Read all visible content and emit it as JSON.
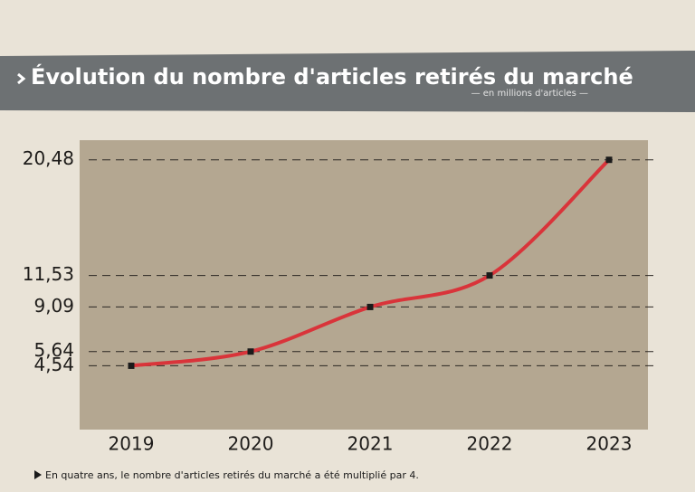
{
  "chart_data": {
    "type": "line",
    "title": "Évolution du nombre d'articles retirés du marché",
    "subtitle": "— en millions d'articles —",
    "note": "En quatre ans, le nombre d'articles retirés du marché a été multiplié par 4.",
    "categories": [
      "2019",
      "2020",
      "2021",
      "2022",
      "2023"
    ],
    "values": [
      4.54,
      5.64,
      9.09,
      11.53,
      20.48
    ],
    "color": "#d9343a",
    "ylim": [
      -0.4,
      22
    ],
    "yticks": [
      {
        "value": 4.54,
        "label": "4,54"
      },
      {
        "value": 5.64,
        "label": "5,64"
      },
      {
        "value": 9.09,
        "label": "9,09"
      },
      {
        "value": 11.53,
        "label": "11,53"
      },
      {
        "value": 20.48,
        "label": "20,48"
      }
    ],
    "grid": true
  }
}
